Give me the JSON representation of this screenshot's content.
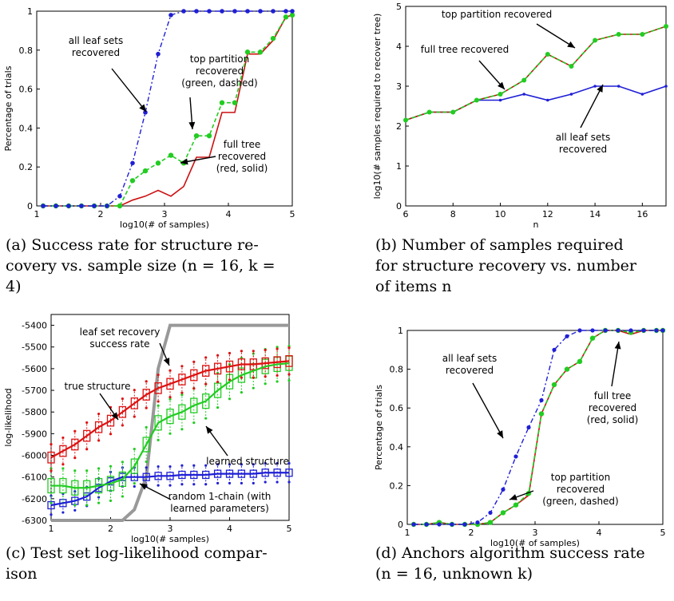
{
  "chart_data": [
    {
      "type": "line",
      "xlabel": "log10(# of samples)",
      "ylabel": "Percentage of trials",
      "xlim": [
        1,
        5
      ],
      "ylim": [
        0,
        1
      ],
      "xticks": [
        "1",
        "2",
        "3",
        "4",
        "5"
      ],
      "yticks": [
        "0",
        "0.2",
        "0.4",
        "0.6",
        "0.8",
        "1"
      ],
      "x": [
        1.1,
        1.3,
        1.5,
        1.7,
        1.9,
        2.1,
        2.3,
        2.5,
        2.7,
        2.9,
        3.1,
        3.3,
        3.5,
        3.7,
        3.9,
        4.1,
        4.3,
        4.5,
        4.7,
        4.9,
        5.0
      ],
      "series": [
        {
          "id": "leaf",
          "color": "#1f1fd6",
          "dash": "6,3,2,3",
          "values": [
            0,
            0,
            0,
            0,
            0,
            0,
            0.05,
            0.22,
            0.48,
            0.78,
            0.98,
            1,
            1,
            1,
            1,
            1,
            1,
            1,
            1,
            1,
            1
          ]
        },
        {
          "id": "top",
          "color": "#22cc22",
          "dash": "5,3",
          "values": [
            0,
            0,
            0,
            0,
            0,
            0,
            0,
            0.13,
            0.18,
            0.22,
            0.26,
            0.22,
            0.36,
            0.36,
            0.53,
            0.53,
            0.79,
            0.79,
            0.86,
            0.97,
            0.98
          ]
        },
        {
          "id": "full",
          "color": "#cc1111",
          "dash": "",
          "values": [
            0,
            0,
            0,
            0,
            0,
            0,
            0,
            0.03,
            0.05,
            0.08,
            0.05,
            0.1,
            0.25,
            0.25,
            0.48,
            0.48,
            0.78,
            0.78,
            0.85,
            0.97,
            0.98
          ]
        }
      ],
      "annotations": [
        {
          "lines": [
            "all leaf sets",
            "recovered"
          ]
        },
        {
          "lines": [
            "top partition",
            "recovered",
            "(green, dashed)"
          ]
        },
        {
          "lines": [
            "full tree",
            "recovered",
            "(red, solid)"
          ]
        }
      ]
    },
    {
      "type": "line",
      "xlabel": "n",
      "ylabel": "log10(# samples required to recover tree)",
      "xlim": [
        6,
        17
      ],
      "ylim": [
        0,
        5
      ],
      "xticks": [
        "6",
        "8",
        "10",
        "12",
        "14",
        "16"
      ],
      "yticks": [
        "0",
        "1",
        "2",
        "3",
        "4",
        "5"
      ],
      "x": [
        6,
        7,
        8,
        9,
        10,
        11,
        12,
        13,
        14,
        15,
        16,
        17
      ],
      "series": [
        {
          "id": "leaf",
          "color": "#1f1fd6",
          "dash": "",
          "values": [
            2.15,
            2.35,
            2.35,
            2.65,
            2.65,
            2.8,
            2.65,
            2.8,
            3.0,
            3.0,
            2.8,
            3.0
          ]
        },
        {
          "id": "top",
          "color": "#22cc22",
          "dash": "5,3",
          "values": [
            2.15,
            2.35,
            2.35,
            2.65,
            2.8,
            3.15,
            3.8,
            3.5,
            4.15,
            4.3,
            4.3,
            4.5
          ]
        },
        {
          "id": "full",
          "color": "#cc1111",
          "dash": "",
          "values": [
            2.15,
            2.35,
            2.35,
            2.65,
            2.8,
            3.15,
            3.8,
            3.5,
            4.15,
            4.3,
            4.3,
            4.5
          ]
        }
      ],
      "annotations": [
        {
          "lines": [
            "top partition recovered"
          ]
        },
        {
          "lines": [
            "full tree recovered"
          ]
        },
        {
          "lines": [
            "all leaf sets",
            "recovered"
          ]
        }
      ]
    },
    {
      "type": "line",
      "xlabel": "log10(# samples)",
      "ylabel": "log-likelihood",
      "xlim": [
        1,
        5
      ],
      "ylim": [
        -6300,
        -5350
      ],
      "xticks": [
        "1",
        "2",
        "3",
        "4",
        "5"
      ],
      "yticks": [
        "-5400",
        "-5500",
        "-5600",
        "-5700",
        "-5800",
        "-5900",
        "-6000",
        "-6100",
        "-6200",
        "-6300"
      ],
      "x": [
        1.0,
        1.2,
        1.4,
        1.6,
        1.8,
        2.0,
        2.2,
        2.4,
        2.6,
        2.8,
        3.0,
        3.2,
        3.4,
        3.6,
        3.8,
        4.0,
        4.2,
        4.4,
        4.6,
        4.8,
        5.0
      ],
      "series": [
        {
          "id": "true",
          "color": "#dd1111",
          "dash": "",
          "values": [
            -6010,
            -5980,
            -5950,
            -5910,
            -5870,
            -5840,
            -5800,
            -5760,
            -5720,
            -5690,
            -5670,
            -5650,
            -5630,
            -5610,
            -5600,
            -5590,
            -5580,
            -5580,
            -5575,
            -5570,
            -5565
          ]
        },
        {
          "id": "learned",
          "color": "#22cc22",
          "dash": "",
          "values": [
            -6140,
            -6140,
            -6150,
            -6150,
            -6140,
            -6130,
            -6110,
            -6050,
            -5950,
            -5850,
            -5820,
            -5800,
            -5770,
            -5750,
            -5700,
            -5660,
            -5630,
            -5610,
            -5590,
            -5580,
            -5575
          ]
        },
        {
          "id": "random",
          "color": "#1f1fd6",
          "dash": "",
          "values": [
            -6230,
            -6220,
            -6210,
            -6190,
            -6150,
            -6120,
            -6100,
            -6100,
            -6100,
            -6095,
            -6095,
            -6090,
            -6090,
            -6090,
            -6085,
            -6085,
            -6085,
            -6085,
            -6080,
            -6080,
            -6080
          ]
        },
        {
          "id": "leafrate",
          "color": "#999999",
          "dash": "",
          "values": [
            -6300,
            -6300,
            -6300,
            -6300,
            -6300,
            -6300,
            -6300,
            -6250,
            -6100,
            -5600,
            -5400,
            -5400,
            -5400,
            -5400,
            -5400,
            -5400,
            -5400,
            -5400,
            -5400,
            -5400,
            -5400
          ]
        }
      ],
      "annotations": [
        {
          "lines": [
            "leaf set recovery",
            "success rate"
          ]
        },
        {
          "lines": [
            "true structure"
          ]
        },
        {
          "lines": [
            "learned structure"
          ]
        },
        {
          "lines": [
            "random 1-chain (with",
            "learned parameters)"
          ]
        }
      ]
    },
    {
      "type": "line",
      "xlabel": "log10(# of samples)",
      "ylabel": "Percentage of trials",
      "xlim": [
        1,
        5
      ],
      "ylim": [
        0,
        1
      ],
      "xticks": [
        "1",
        "2",
        "3",
        "4",
        "5"
      ],
      "yticks": [
        "0",
        "0.2",
        "0.4",
        "0.6",
        "0.8",
        "1"
      ],
      "x": [
        1.1,
        1.3,
        1.5,
        1.7,
        1.9,
        2.1,
        2.3,
        2.5,
        2.7,
        2.9,
        3.1,
        3.3,
        3.5,
        3.7,
        3.9,
        4.1,
        4.3,
        4.5,
        4.7,
        4.9,
        5.0
      ],
      "series": [
        {
          "id": "leaf",
          "color": "#1f1fd6",
          "dash": "6,3,2,3",
          "values": [
            0,
            0,
            0,
            0,
            0,
            0.01,
            0.06,
            0.18,
            0.35,
            0.5,
            0.64,
            0.9,
            0.97,
            1,
            1,
            1,
            1,
            1,
            1,
            1,
            1
          ]
        },
        {
          "id": "top",
          "color": "#22cc22",
          "dash": "5,3",
          "values": [
            0,
            0,
            0.01,
            0,
            0,
            0,
            0.01,
            0.06,
            0.1,
            0.16,
            0.57,
            0.72,
            0.8,
            0.84,
            0.96,
            1,
            1,
            0.99,
            1,
            1,
            1
          ]
        },
        {
          "id": "full",
          "color": "#cc1111",
          "dash": "",
          "values": [
            0,
            0,
            0.01,
            0,
            0,
            0,
            0.01,
            0.06,
            0.1,
            0.15,
            0.57,
            0.72,
            0.8,
            0.84,
            0.96,
            1,
            1,
            0.98,
            1,
            1,
            1
          ]
        }
      ],
      "annotations": [
        {
          "lines": [
            "all leaf sets",
            "recovered"
          ]
        },
        {
          "lines": [
            "full tree",
            "recovered",
            "(red, solid)"
          ]
        },
        {
          "lines": [
            "top partition",
            "recovered",
            "(green, dashed)"
          ]
        }
      ]
    }
  ],
  "captions": [
    {
      "lines": [
        "(a) Success rate for structure re-",
        "covery vs. sample size (n = 16, k =",
        "4)"
      ]
    },
    {
      "lines": [
        "(b) Number of samples required",
        "for structure recovery vs. number",
        "of items n"
      ]
    },
    {
      "lines": [
        "(c) Test set log-likelihood compar-",
        "ison"
      ]
    },
    {
      "lines": [
        "(d) Anchors algorithm success rate",
        "(n = 16, unknown k)"
      ]
    }
  ]
}
